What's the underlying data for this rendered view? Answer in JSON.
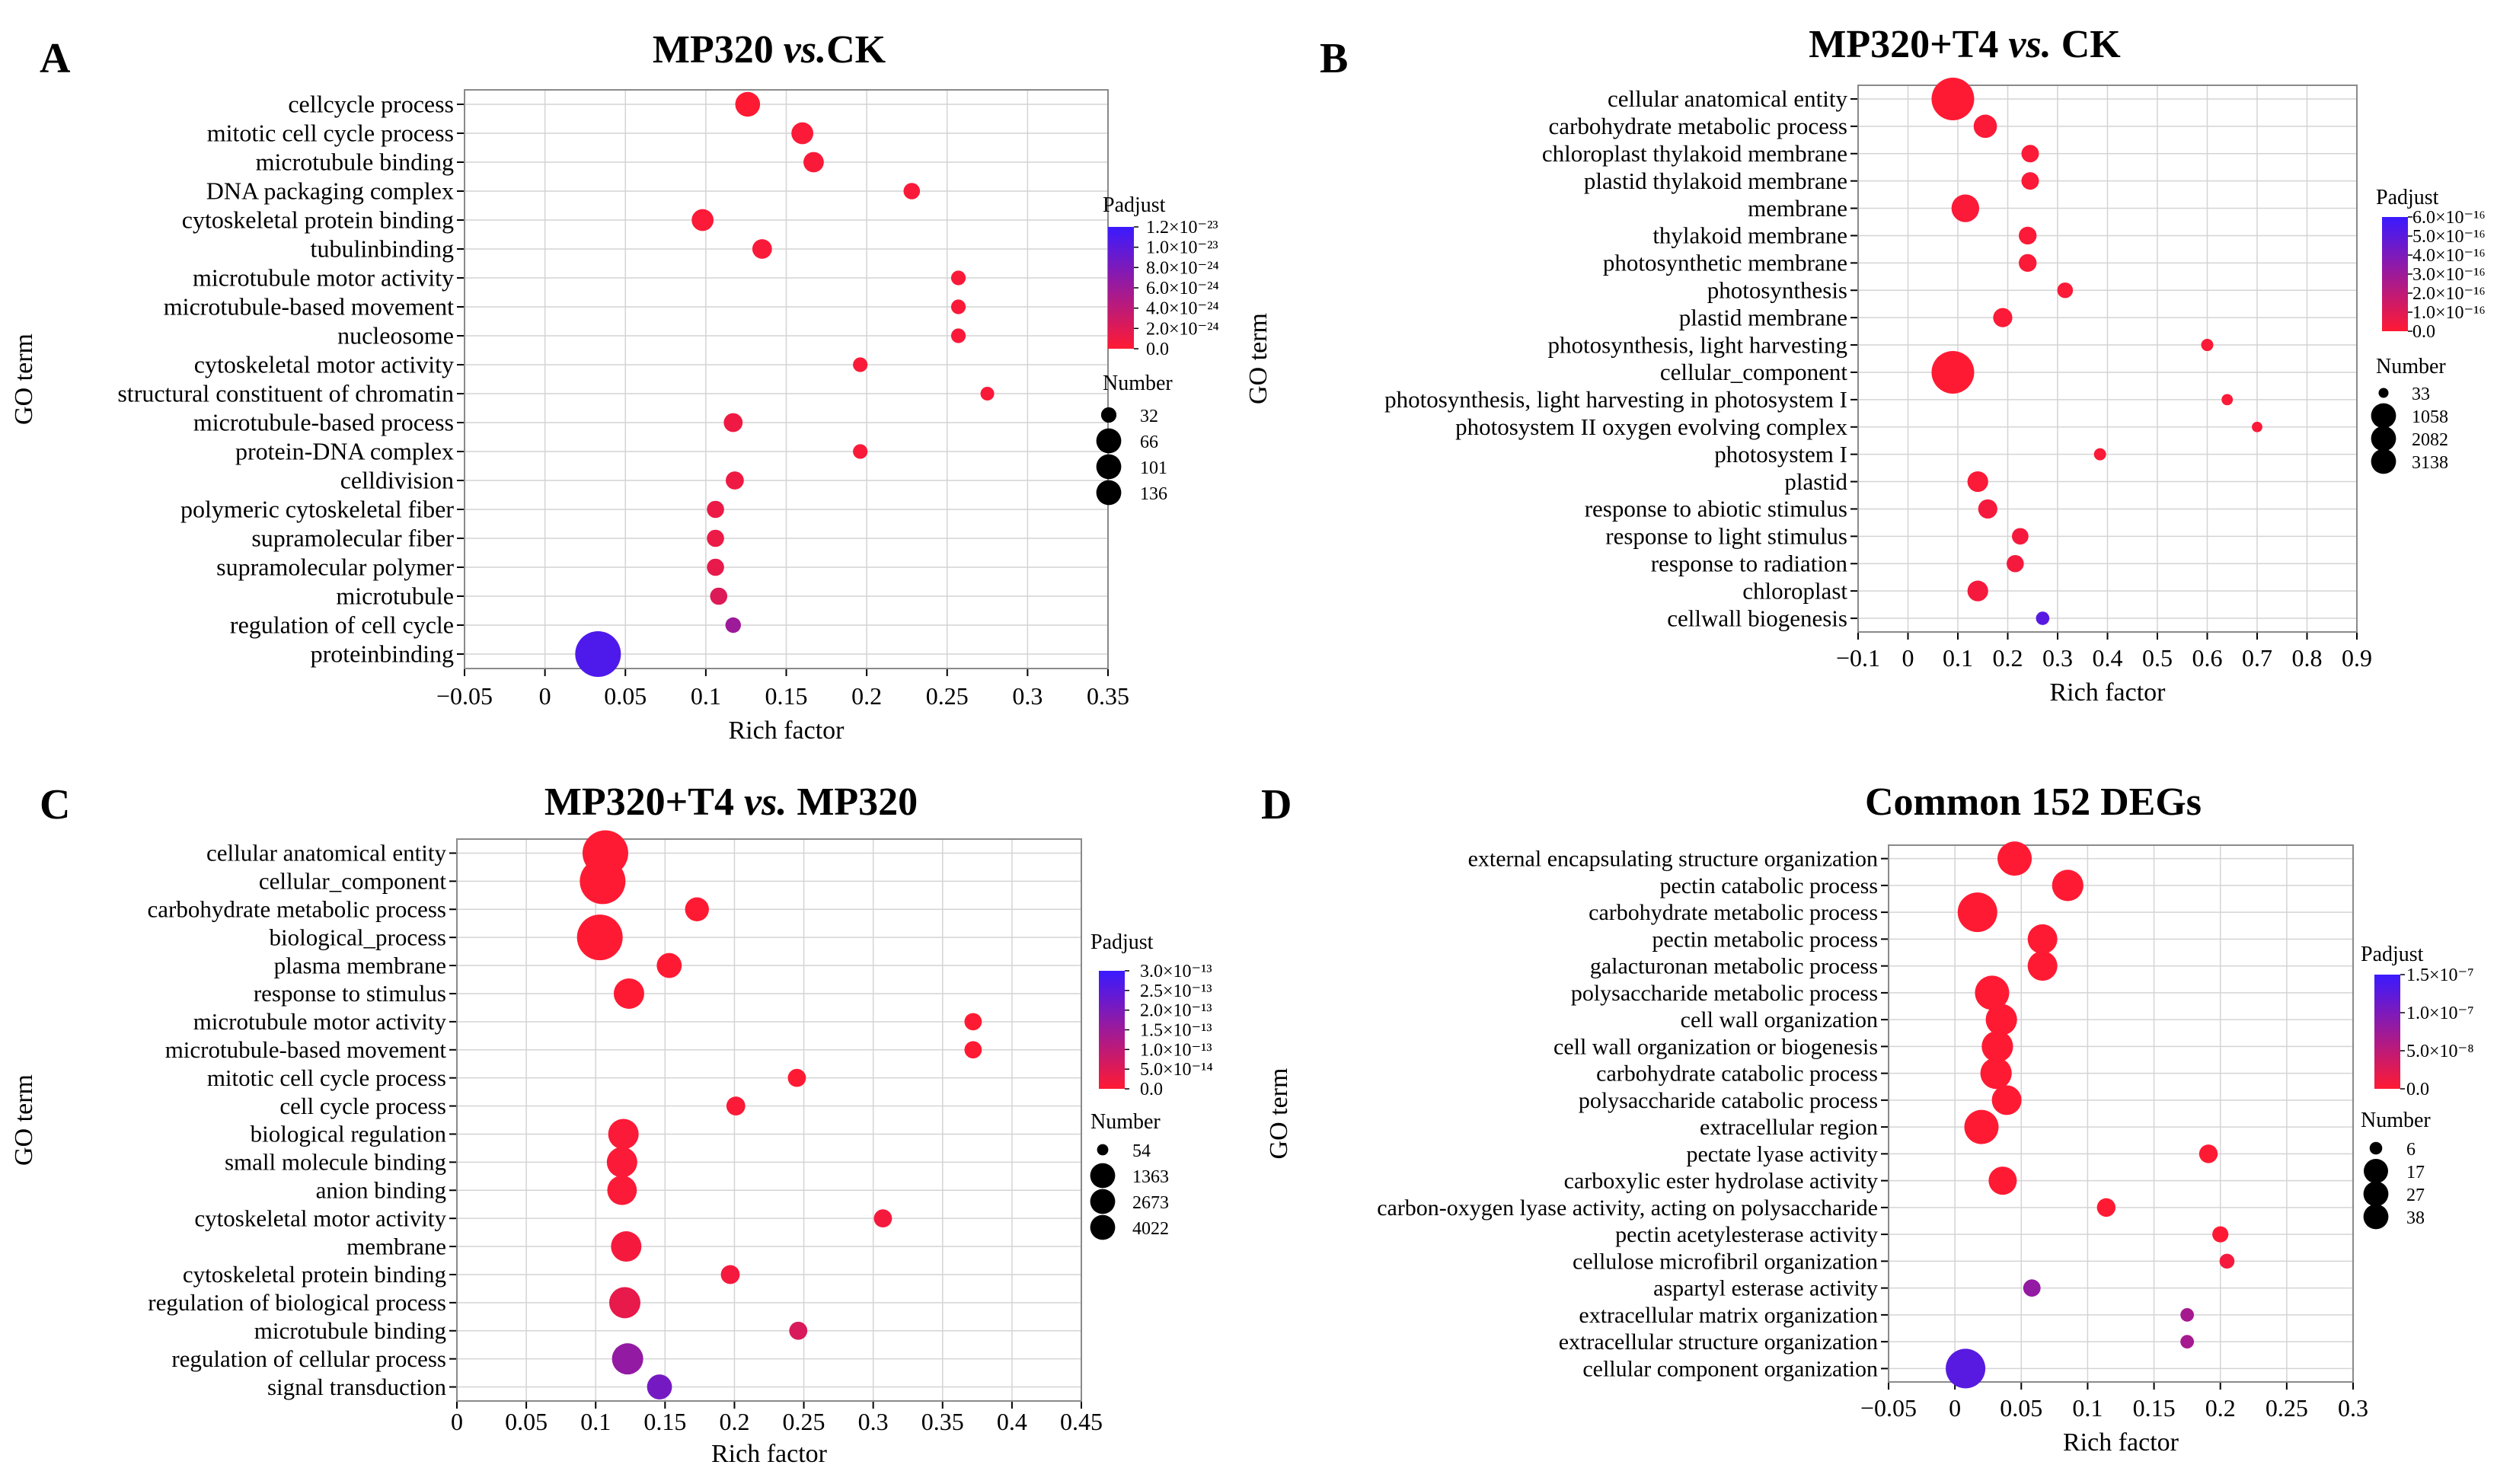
{
  "chart_data": [
    {
      "type": "scatter",
      "panel": "A",
      "title": "MP320 vs.CK",
      "title_main": "MP320 ",
      "title_vs": "vs.",
      "title_rest": "CK",
      "xlabel": "Rich factor",
      "ylabel": "GO term",
      "xlim": [
        -0.05,
        0.35
      ],
      "xticks": [
        -0.05,
        0,
        0.05,
        0.1,
        0.15,
        0.2,
        0.25,
        0.3,
        0.35
      ],
      "xtick_labels": [
        "−0.05",
        "0",
        "0.05",
        "0.1",
        "0.15",
        "0.2",
        "0.25",
        "0.3",
        "0.35"
      ],
      "legend_color_title": "Padjust",
      "legend_color_labels": [
        "1.2×10⁻²³",
        "1.0×10⁻²³",
        "8.0×10⁻²⁴",
        "6.0×10⁻²⁴",
        "4.0×10⁻²⁴",
        "2.0×10⁻²⁴",
        "0.0"
      ],
      "legend_size_title": "Number",
      "legend_size_values": [
        32,
        66,
        101,
        136
      ],
      "terms": [
        "cellcycle process",
        "mitotic cell cycle process",
        "microtubule binding",
        "DNA packaging complex",
        "cytoskeletal protein binding",
        "tubulinbinding",
        "microtubule motor activity",
        "microtubule-based movement",
        "nucleosome",
        "cytoskeletal motor activity",
        "structural constituent of chromatin",
        "microtubule-based process",
        "protein-DNA  complex",
        "celldivision",
        "polymeric cytoskeletal fiber",
        "supramolecular fiber",
        "supramolecular polymer",
        "microtubule",
        "regulation of  cell cycle",
        "proteinbinding"
      ],
      "x": [
        0.126,
        0.16,
        0.167,
        0.228,
        0.098,
        0.135,
        0.257,
        0.257,
        0.257,
        0.196,
        0.275,
        0.117,
        0.196,
        0.118,
        0.106,
        0.106,
        0.106,
        0.108,
        0.117,
        0.033
      ],
      "size": [
        60,
        52,
        48,
        38,
        52,
        46,
        34,
        34,
        34,
        34,
        32,
        44,
        34,
        42,
        40,
        40,
        40,
        40,
        36,
        136
      ],
      "color": [
        0.0,
        0.02,
        0.03,
        0.03,
        0.02,
        0.03,
        0.03,
        0.03,
        0.03,
        0.03,
        0.03,
        0.08,
        0.03,
        0.08,
        0.1,
        0.1,
        0.12,
        0.18,
        0.5,
        0.9
      ]
    },
    {
      "type": "scatter",
      "panel": "B",
      "title": "MP320+T4 vs. CK",
      "title_main": "MP320+T4 ",
      "title_vs": "vs.",
      "title_rest": " CK",
      "xlabel": "Rich   factor",
      "ylabel": "GO   term",
      "xlim": [
        -0.1,
        0.9
      ],
      "xticks": [
        -0.1,
        0,
        0.1,
        0.2,
        0.3,
        0.4,
        0.5,
        0.6,
        0.7,
        0.8,
        0.9
      ],
      "xtick_labels": [
        "−0.1",
        "0",
        "0.1",
        "0.2",
        "0.3",
        "0.4",
        "0.5",
        "0.6",
        "0.7",
        "0.8",
        "0.9"
      ],
      "legend_color_title": "Padjust",
      "legend_color_labels": [
        "6.0×10⁻¹⁶",
        "5.0×10⁻¹⁶",
        "4.0×10⁻¹⁶",
        "3.0×10⁻¹⁶",
        "2.0×10⁻¹⁶",
        "1.0×10⁻¹⁶",
        "0.0"
      ],
      "legend_size_title": "Number",
      "legend_size_values": [
        33,
        1058,
        2082,
        3138
      ],
      "terms": [
        "cellular anatomical entity",
        "carbohydrate metabolic process",
        "chloroplast thylakoid membrane",
        "plastid thylakoid membrane",
        "membrane",
        "thylakoid membrane",
        "photosynthetic membrane",
        "photosynthesis",
        "plastid membrane",
        "photosynthesis, light harvesting",
        "cellular_component",
        "photosynthesis, light harvesting  in photosystem I",
        "photosystem II      oxygen evolving complex",
        "photosystem I",
        "plastid",
        "response to abiotic stimulus",
        "response to light stimulus",
        "response to radiation",
        "chloroplast",
        "cellwall biogenesis"
      ],
      "x": [
        0.09,
        0.155,
        0.245,
        0.245,
        0.115,
        0.24,
        0.24,
        0.315,
        0.19,
        0.6,
        0.09,
        0.64,
        0.7,
        0.385,
        0.14,
        0.16,
        0.225,
        0.215,
        0.14,
        0.27
      ],
      "size": [
        3138,
        800,
        400,
        400,
        1200,
        420,
        420,
        300,
        500,
        150,
        3138,
        120,
        100,
        150,
        600,
        500,
        350,
        380,
        600,
        200
      ],
      "color": [
        0.0,
        0.02,
        0.02,
        0.02,
        0.02,
        0.02,
        0.02,
        0.02,
        0.02,
        0.02,
        0.0,
        0.02,
        0.02,
        0.02,
        0.02,
        0.05,
        0.05,
        0.05,
        0.05,
        0.85
      ]
    },
    {
      "type": "scatter",
      "panel": "C",
      "title": "MP320+T4 vs. MP320",
      "title_main": "MP320+T4 ",
      "title_vs": "vs.",
      "title_rest": " MP320",
      "xlabel": "Rich factor",
      "ylabel": "GO term",
      "xlim": [
        0,
        0.45
      ],
      "xticks": [
        0,
        0.05,
        0.1,
        0.15,
        0.2,
        0.25,
        0.3,
        0.35,
        0.4,
        0.45
      ],
      "xtick_labels": [
        "0",
        "0.05",
        "0.1",
        "0.15",
        "0.2",
        "0.25",
        "0.3",
        "0.35",
        "0.4",
        "0.45"
      ],
      "legend_color_title": "Padjust",
      "legend_color_labels": [
        "3.0×10⁻¹³",
        "2.5×10⁻¹³",
        "2.0×10⁻¹³",
        "1.5×10⁻¹³",
        "1.0×10⁻¹³",
        "5.0×10⁻¹⁴",
        "0.0"
      ],
      "legend_size_title": "Number",
      "legend_size_values": [
        54,
        1363,
        2673,
        4022
      ],
      "terms": [
        "cellular anatomical entity",
        "cellular_component",
        "carbohydrate metabolic process",
        "biological_process",
        "plasma membrane",
        "response to stimulus",
        "microtubule motor activity",
        "microtubule-based movement",
        "mitotic cell cycle process",
        "cell cycle process",
        "biological regulation",
        "small molecule binding",
        "anion binding",
        "cytoskeletal motor activity",
        "membrane",
        "cytoskeletal protein binding",
        "regulation of biological process",
        "microtubule binding",
        "regulation of cellular process",
        "signal transduction"
      ],
      "x": [
        0.107,
        0.105,
        0.173,
        0.103,
        0.153,
        0.124,
        0.372,
        0.372,
        0.245,
        0.201,
        0.12,
        0.119,
        0.119,
        0.307,
        0.122,
        0.197,
        0.121,
        0.246,
        0.123,
        0.146
      ],
      "size": [
        4022,
        4022,
        900,
        4022,
        1000,
        1600,
        400,
        400,
        450,
        500,
        1600,
        1600,
        1500,
        450,
        1600,
        500,
        1700,
        450,
        1700,
        1000
      ],
      "color": [
        0.0,
        0.0,
        0.0,
        0.0,
        0.0,
        0.0,
        0.0,
        0.0,
        0.0,
        0.02,
        0.02,
        0.02,
        0.02,
        0.05,
        0.05,
        0.05,
        0.12,
        0.2,
        0.55,
        0.7
      ]
    },
    {
      "type": "scatter",
      "panel": "D",
      "title": "Common 152 DEGs",
      "title_main": "Common 152 DEGs",
      "title_vs": "",
      "title_rest": "",
      "xlabel": "Rich factor",
      "ylabel": "GO term",
      "xlim": [
        -0.05,
        0.3
      ],
      "xticks": [
        -0.05,
        0,
        0.05,
        0.1,
        0.15,
        0.2,
        0.25,
        0.3
      ],
      "xtick_labels": [
        "−0.05",
        "0",
        "0.05",
        "0.1",
        "0.15",
        "0.2",
        "0.25",
        "0.3"
      ],
      "legend_color_title": "Padjust",
      "legend_color_labels": [
        "1.5×10⁻⁷",
        "1.0×10⁻⁷",
        "5.0×10⁻⁸",
        "0.0"
      ],
      "legend_size_title": "Number",
      "legend_size_values": [
        6,
        17,
        27,
        38
      ],
      "terms": [
        "external encapsulating structure organization",
        "pectin catabolic process",
        "carbohydrate metabolic process",
        "pectin metabolic process",
        "galacturonan metabolic process",
        "polysaccharide metabolic process",
        "cell wall organization",
        "cell wall organization or biogenesis",
        "carbohydrate catabolic process",
        "polysaccharide catabolic process",
        "extracellular region",
        "pectate lyase activity",
        "carboxylic ester hydrolase activity",
        "carbon-oxygen lyase activity, acting on polysaccharide",
        "pectin acetylesterase activity",
        "cellulose microfibril organization",
        "aspartyl esterase activity",
        "extracellular matrix organization",
        "extracellular structure organization",
        "cellular component organization"
      ],
      "x": [
        0.045,
        0.085,
        0.017,
        0.066,
        0.066,
        0.028,
        0.035,
        0.032,
        0.031,
        0.039,
        0.02,
        0.191,
        0.036,
        0.114,
        0.2,
        0.205,
        0.058,
        0.175,
        0.175,
        0.008
      ],
      "size": [
        30,
        26,
        38,
        24,
        24,
        30,
        26,
        26,
        26,
        24,
        30,
        12,
        22,
        12,
        10,
        9,
        11,
        8,
        8,
        38
      ],
      "color": [
        0.0,
        0.0,
        0.0,
        0.0,
        0.0,
        0.0,
        0.0,
        0.0,
        0.0,
        0.0,
        0.0,
        0.0,
        0.0,
        0.0,
        0.0,
        0.05,
        0.55,
        0.45,
        0.45,
        0.85
      ]
    }
  ]
}
